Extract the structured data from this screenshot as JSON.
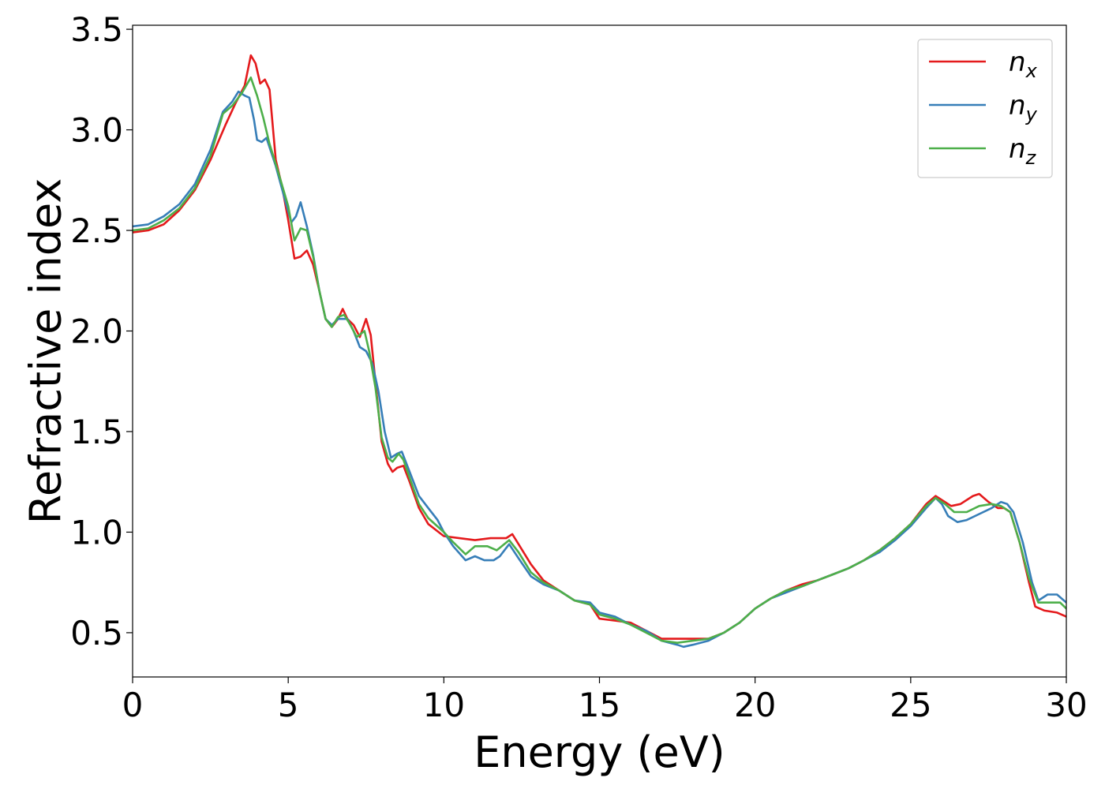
{
  "chart_data": {
    "type": "line",
    "xlabel": "Energy (eV)",
    "ylabel": "Refractive index",
    "xlim": [
      0,
      30
    ],
    "ylim": [
      0.28,
      3.52
    ],
    "xticks": [
      0,
      5,
      10,
      15,
      20,
      25,
      30
    ],
    "xtick_labels": [
      "0",
      "5",
      "10",
      "15",
      "20",
      "25",
      "30"
    ],
    "yticks": [
      0.5,
      1.0,
      1.5,
      2.0,
      2.5,
      3.0,
      3.5
    ],
    "ytick_labels": [
      "0.5",
      "1.0",
      "1.5",
      "2.0",
      "2.5",
      "3.0",
      "3.5"
    ],
    "grid": false,
    "legend_position": "top-right",
    "series": [
      {
        "name": "n",
        "subscript": "x",
        "color": "#e41a1c",
        "points": [
          [
            0,
            2.49
          ],
          [
            0.5,
            2.5
          ],
          [
            1,
            2.53
          ],
          [
            1.5,
            2.6
          ],
          [
            2,
            2.7
          ],
          [
            2.5,
            2.85
          ],
          [
            3,
            3.03
          ],
          [
            3.3,
            3.13
          ],
          [
            3.6,
            3.22
          ],
          [
            3.8,
            3.37
          ],
          [
            3.95,
            3.33
          ],
          [
            4.1,
            3.23
          ],
          [
            4.25,
            3.25
          ],
          [
            4.4,
            3.2
          ],
          [
            4.6,
            2.85
          ],
          [
            4.8,
            2.72
          ],
          [
            5,
            2.55
          ],
          [
            5.2,
            2.36
          ],
          [
            5.4,
            2.37
          ],
          [
            5.6,
            2.4
          ],
          [
            5.8,
            2.33
          ],
          [
            6,
            2.2
          ],
          [
            6.2,
            2.06
          ],
          [
            6.4,
            2.02
          ],
          [
            6.6,
            2.06
          ],
          [
            6.75,
            2.11
          ],
          [
            6.9,
            2.06
          ],
          [
            7.1,
            2.03
          ],
          [
            7.3,
            1.97
          ],
          [
            7.5,
            2.06
          ],
          [
            7.65,
            1.98
          ],
          [
            7.8,
            1.75
          ],
          [
            8,
            1.45
          ],
          [
            8.2,
            1.34
          ],
          [
            8.35,
            1.3
          ],
          [
            8.5,
            1.32
          ],
          [
            8.7,
            1.33
          ],
          [
            8.9,
            1.25
          ],
          [
            9.2,
            1.12
          ],
          [
            9.5,
            1.04
          ],
          [
            10,
            0.98
          ],
          [
            10.5,
            0.97
          ],
          [
            11,
            0.96
          ],
          [
            11.5,
            0.97
          ],
          [
            12,
            0.97
          ],
          [
            12.2,
            0.99
          ],
          [
            12.4,
            0.94
          ],
          [
            12.8,
            0.84
          ],
          [
            13.2,
            0.76
          ],
          [
            13.7,
            0.71
          ],
          [
            14.2,
            0.66
          ],
          [
            14.7,
            0.64
          ],
          [
            15,
            0.57
          ],
          [
            15.5,
            0.56
          ],
          [
            16,
            0.55
          ],
          [
            16.5,
            0.51
          ],
          [
            17,
            0.47
          ],
          [
            17.5,
            0.47
          ],
          [
            18,
            0.47
          ],
          [
            18.5,
            0.47
          ],
          [
            19,
            0.5
          ],
          [
            19.5,
            0.55
          ],
          [
            20,
            0.62
          ],
          [
            20.5,
            0.67
          ],
          [
            21,
            0.71
          ],
          [
            21.5,
            0.74
          ],
          [
            22,
            0.76
          ],
          [
            22.5,
            0.79
          ],
          [
            23,
            0.82
          ],
          [
            23.5,
            0.86
          ],
          [
            24,
            0.91
          ],
          [
            24.5,
            0.97
          ],
          [
            25,
            1.04
          ],
          [
            25.5,
            1.14
          ],
          [
            25.8,
            1.18
          ],
          [
            26,
            1.16
          ],
          [
            26.3,
            1.13
          ],
          [
            26.6,
            1.14
          ],
          [
            27,
            1.18
          ],
          [
            27.2,
            1.19
          ],
          [
            27.5,
            1.15
          ],
          [
            27.8,
            1.12
          ],
          [
            28,
            1.12
          ],
          [
            28.2,
            1.1
          ],
          [
            28.5,
            0.95
          ],
          [
            28.8,
            0.75
          ],
          [
            29,
            0.63
          ],
          [
            29.3,
            0.61
          ],
          [
            29.7,
            0.6
          ],
          [
            30,
            0.58
          ]
        ]
      },
      {
        "name": "n",
        "subscript": "y",
        "color": "#377eb8",
        "points": [
          [
            0,
            2.52
          ],
          [
            0.5,
            2.53
          ],
          [
            1,
            2.57
          ],
          [
            1.5,
            2.63
          ],
          [
            2,
            2.73
          ],
          [
            2.5,
            2.9
          ],
          [
            2.9,
            3.09
          ],
          [
            3.2,
            3.14
          ],
          [
            3.4,
            3.19
          ],
          [
            3.6,
            3.17
          ],
          [
            3.75,
            3.16
          ],
          [
            3.9,
            3.05
          ],
          [
            4,
            2.95
          ],
          [
            4.15,
            2.94
          ],
          [
            4.3,
            2.96
          ],
          [
            4.6,
            2.82
          ],
          [
            4.9,
            2.65
          ],
          [
            5.1,
            2.54
          ],
          [
            5.25,
            2.57
          ],
          [
            5.4,
            2.64
          ],
          [
            5.6,
            2.52
          ],
          [
            5.8,
            2.38
          ],
          [
            6,
            2.2
          ],
          [
            6.2,
            2.06
          ],
          [
            6.4,
            2.03
          ],
          [
            6.6,
            2.06
          ],
          [
            6.9,
            2.06
          ],
          [
            7.1,
            2.0
          ],
          [
            7.3,
            1.92
          ],
          [
            7.5,
            1.9
          ],
          [
            7.7,
            1.84
          ],
          [
            7.9,
            1.7
          ],
          [
            8.1,
            1.5
          ],
          [
            8.3,
            1.37
          ],
          [
            8.5,
            1.39
          ],
          [
            8.65,
            1.4
          ],
          [
            8.9,
            1.3
          ],
          [
            9.2,
            1.18
          ],
          [
            9.5,
            1.12
          ],
          [
            9.8,
            1.06
          ],
          [
            10,
            1.0
          ],
          [
            10.3,
            0.93
          ],
          [
            10.7,
            0.86
          ],
          [
            11,
            0.88
          ],
          [
            11.3,
            0.86
          ],
          [
            11.6,
            0.86
          ],
          [
            11.8,
            0.88
          ],
          [
            12.1,
            0.94
          ],
          [
            12.4,
            0.87
          ],
          [
            12.8,
            0.78
          ],
          [
            13.2,
            0.74
          ],
          [
            13.7,
            0.71
          ],
          [
            14.2,
            0.66
          ],
          [
            14.7,
            0.65
          ],
          [
            15,
            0.6
          ],
          [
            15.5,
            0.58
          ],
          [
            16,
            0.54
          ],
          [
            16.5,
            0.51
          ],
          [
            17,
            0.46
          ],
          [
            17.5,
            0.44
          ],
          [
            17.7,
            0.43
          ],
          [
            18,
            0.44
          ],
          [
            18.5,
            0.46
          ],
          [
            19,
            0.5
          ],
          [
            19.5,
            0.55
          ],
          [
            20,
            0.62
          ],
          [
            20.5,
            0.67
          ],
          [
            21,
            0.7
          ],
          [
            21.5,
            0.73
          ],
          [
            22,
            0.76
          ],
          [
            22.5,
            0.79
          ],
          [
            23,
            0.82
          ],
          [
            23.5,
            0.86
          ],
          [
            24,
            0.9
          ],
          [
            24.5,
            0.96
          ],
          [
            25,
            1.03
          ],
          [
            25.5,
            1.12
          ],
          [
            25.8,
            1.17
          ],
          [
            26,
            1.14
          ],
          [
            26.2,
            1.08
          ],
          [
            26.5,
            1.05
          ],
          [
            26.8,
            1.06
          ],
          [
            27.2,
            1.09
          ],
          [
            27.6,
            1.12
          ],
          [
            27.9,
            1.15
          ],
          [
            28.1,
            1.14
          ],
          [
            28.3,
            1.1
          ],
          [
            28.6,
            0.95
          ],
          [
            28.9,
            0.75
          ],
          [
            29.1,
            0.66
          ],
          [
            29.4,
            0.69
          ],
          [
            29.7,
            0.69
          ],
          [
            30,
            0.65
          ]
        ]
      },
      {
        "name": "n",
        "subscript": "z",
        "color": "#4daf4a",
        "points": [
          [
            0,
            2.5
          ],
          [
            0.5,
            2.51
          ],
          [
            1,
            2.55
          ],
          [
            1.5,
            2.61
          ],
          [
            2,
            2.71
          ],
          [
            2.5,
            2.87
          ],
          [
            2.9,
            3.08
          ],
          [
            3.2,
            3.12
          ],
          [
            3.5,
            3.18
          ],
          [
            3.8,
            3.26
          ],
          [
            4,
            3.17
          ],
          [
            4.2,
            3.06
          ],
          [
            4.4,
            2.93
          ],
          [
            4.7,
            2.78
          ],
          [
            5,
            2.62
          ],
          [
            5.2,
            2.45
          ],
          [
            5.4,
            2.51
          ],
          [
            5.6,
            2.5
          ],
          [
            5.8,
            2.37
          ],
          [
            6,
            2.2
          ],
          [
            6.2,
            2.06
          ],
          [
            6.4,
            2.02
          ],
          [
            6.6,
            2.07
          ],
          [
            6.8,
            2.08
          ],
          [
            7,
            2.03
          ],
          [
            7.2,
            1.97
          ],
          [
            7.45,
            2.0
          ],
          [
            7.6,
            1.9
          ],
          [
            7.8,
            1.72
          ],
          [
            8,
            1.47
          ],
          [
            8.2,
            1.37
          ],
          [
            8.35,
            1.35
          ],
          [
            8.55,
            1.39
          ],
          [
            8.7,
            1.36
          ],
          [
            8.9,
            1.27
          ],
          [
            9.2,
            1.14
          ],
          [
            9.5,
            1.07
          ],
          [
            10,
            1.0
          ],
          [
            10.3,
            0.95
          ],
          [
            10.7,
            0.89
          ],
          [
            11,
            0.93
          ],
          [
            11.4,
            0.93
          ],
          [
            11.7,
            0.91
          ],
          [
            12.1,
            0.96
          ],
          [
            12.4,
            0.9
          ],
          [
            12.8,
            0.8
          ],
          [
            13.2,
            0.75
          ],
          [
            13.7,
            0.71
          ],
          [
            14.2,
            0.66
          ],
          [
            14.7,
            0.64
          ],
          [
            15,
            0.59
          ],
          [
            15.5,
            0.57
          ],
          [
            16,
            0.54
          ],
          [
            16.5,
            0.5
          ],
          [
            17,
            0.46
          ],
          [
            17.5,
            0.45
          ],
          [
            18,
            0.46
          ],
          [
            18.5,
            0.47
          ],
          [
            19,
            0.5
          ],
          [
            19.5,
            0.55
          ],
          [
            20,
            0.62
          ],
          [
            20.5,
            0.67
          ],
          [
            21,
            0.71
          ],
          [
            21.5,
            0.73
          ],
          [
            22,
            0.76
          ],
          [
            22.5,
            0.79
          ],
          [
            23,
            0.82
          ],
          [
            23.5,
            0.86
          ],
          [
            24,
            0.91
          ],
          [
            24.5,
            0.97
          ],
          [
            25,
            1.04
          ],
          [
            25.5,
            1.13
          ],
          [
            25.8,
            1.17
          ],
          [
            26.1,
            1.14
          ],
          [
            26.4,
            1.1
          ],
          [
            26.8,
            1.1
          ],
          [
            27.2,
            1.13
          ],
          [
            27.6,
            1.14
          ],
          [
            27.9,
            1.13
          ],
          [
            28.2,
            1.1
          ],
          [
            28.5,
            0.95
          ],
          [
            28.8,
            0.77
          ],
          [
            29.1,
            0.65
          ],
          [
            29.4,
            0.65
          ],
          [
            29.8,
            0.65
          ],
          [
            30,
            0.62
          ]
        ]
      }
    ]
  }
}
